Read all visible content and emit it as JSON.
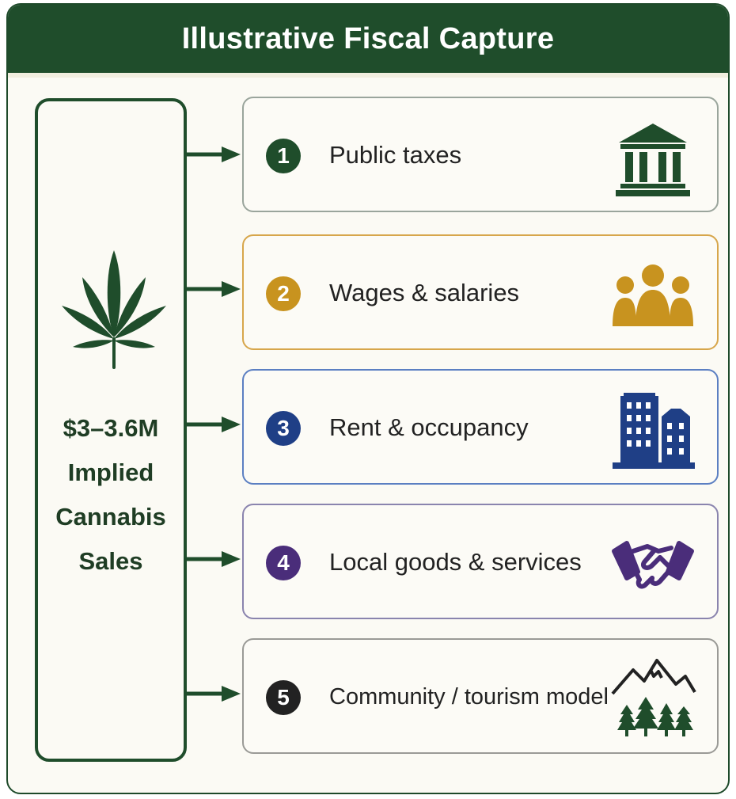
{
  "title": "Illustrative Fiscal Capture",
  "source": {
    "amount": "$3–3.6M",
    "label_lines": [
      "Implied",
      "Cannabis",
      "Sales"
    ],
    "icon": "cannabis-leaf-icon"
  },
  "items": [
    {
      "number": "1",
      "label": "Public taxes",
      "icon": "government-building-icon",
      "color": "#1f4d2b"
    },
    {
      "number": "2",
      "label": "Wages & salaries",
      "icon": "people-group-icon",
      "color": "#c8931f"
    },
    {
      "number": "3",
      "label": "Rent & occupancy",
      "icon": "office-buildings-icon",
      "color": "#1f3f86"
    },
    {
      "number": "4",
      "label": "Local goods & services",
      "icon": "handshake-icon",
      "color": "#4a2d7a"
    },
    {
      "number": "5",
      "label": "Community / tourism model",
      "icon": "mountains-trees-icon",
      "color": "#222222"
    }
  ],
  "colors": {
    "brand_green": "#1f4d2b",
    "gold": "#c8931f",
    "navy": "#1f3f86",
    "purple": "#4a2d7a",
    "dark": "#222222"
  }
}
